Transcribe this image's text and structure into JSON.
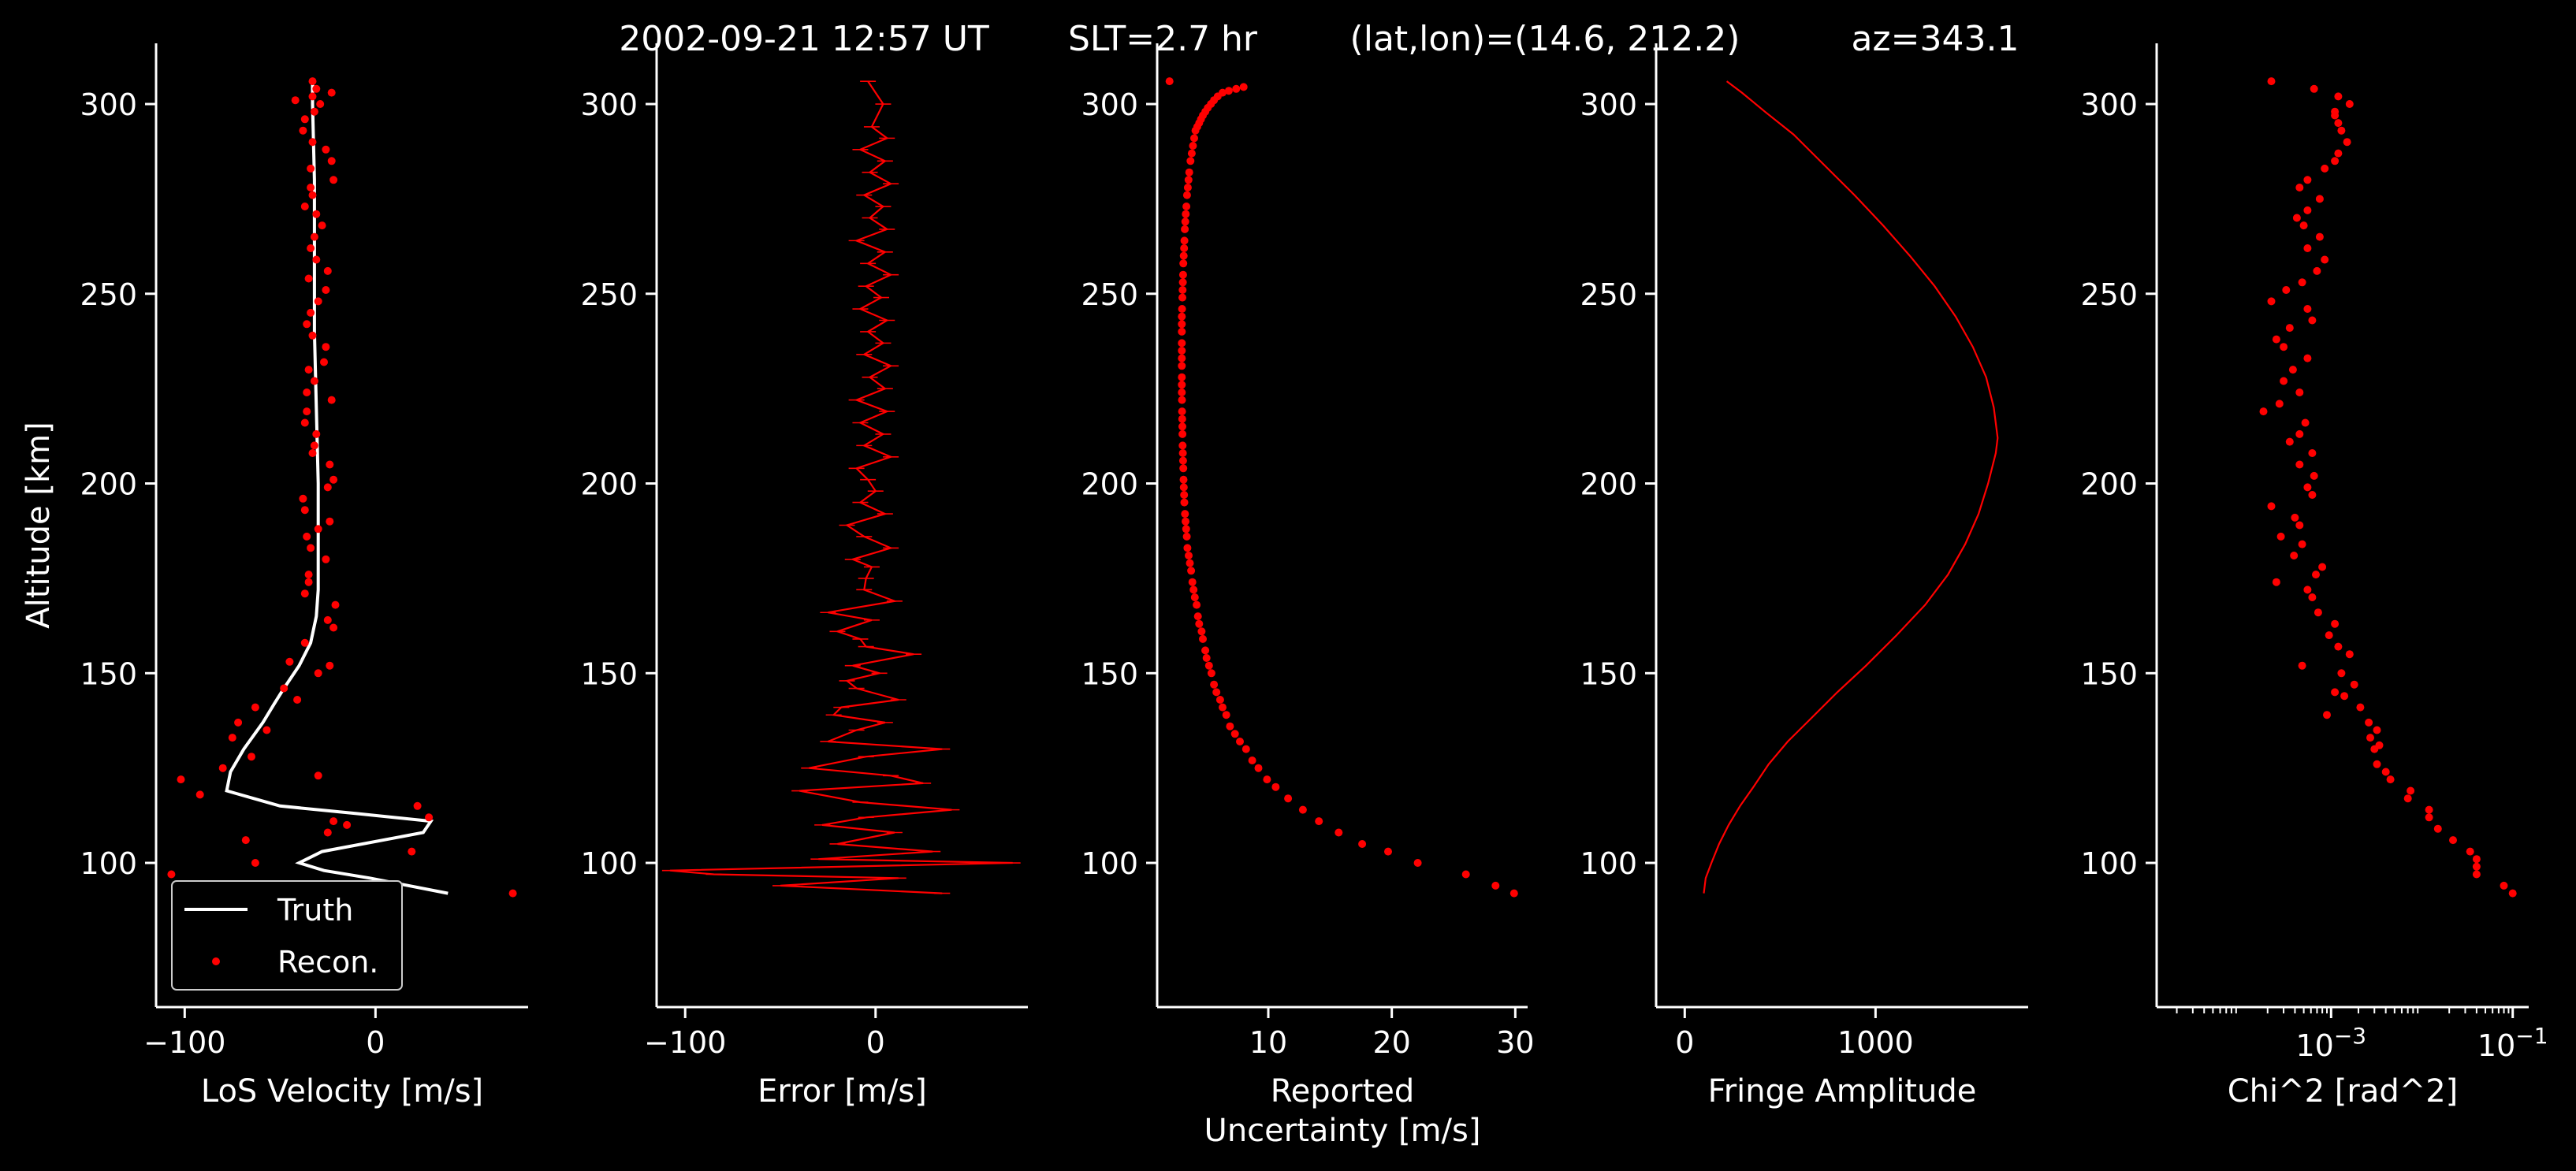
{
  "figure": {
    "title_parts": [
      "2002-09-21 12:57 UT",
      "SLT=2.7 hr",
      "(lat,lon)=(14.6, 212.2)",
      "az=343.1"
    ]
  },
  "colors": {
    "background": "#000000",
    "axes": "#ffffff",
    "truth": "#ffffff",
    "recon": "#ff0000"
  },
  "chart_data": [
    {
      "type": "scatter",
      "xlabel": "LoS Velocity [m/s]",
      "ylabel": "Altitude [km]",
      "xlim": [
        -115,
        80
      ],
      "ylim": [
        62,
        316
      ],
      "xticks": [
        -100,
        0
      ],
      "xtick_labels": [
        "−100",
        "0"
      ],
      "yticks": [
        100,
        150,
        200,
        250,
        300
      ],
      "legend": {
        "placement": "lower-left",
        "entries": [
          "Truth",
          "Recon."
        ]
      },
      "series": [
        {
          "name": "Truth",
          "style": "line",
          "color": "#ffffff",
          "x": [
            38,
            -3,
            -27,
            -40,
            -28,
            25,
            29,
            -10,
            -50,
            -78,
            -76,
            -69,
            -59,
            -53,
            -48,
            -40,
            -34,
            -31,
            -30,
            -30,
            -30,
            -31,
            -32,
            -32,
            -32,
            -33,
            -33
          ],
          "y": [
            92,
            96,
            98,
            100,
            103,
            108,
            111,
            113,
            115,
            119,
            124,
            130,
            137,
            142,
            146,
            152,
            158,
            165,
            172,
            180,
            200,
            220,
            240,
            260,
            280,
            300,
            306
          ]
        },
        {
          "name": "Recon.",
          "style": "points",
          "color": "#ff0000",
          "x": [
            72,
            -107,
            -63,
            19,
            -68,
            -25,
            -15,
            -22,
            28,
            22,
            -92,
            -102,
            -30,
            -80,
            -65,
            -75,
            -57,
            -72,
            -63,
            -41,
            -48,
            -30,
            -24,
            -45,
            -37,
            -22,
            -25,
            -21,
            -37,
            -35,
            -35,
            -26,
            -34,
            -36,
            -30,
            -24,
            -37,
            -38,
            -25,
            -22,
            -24,
            -33,
            -32,
            -31,
            -37,
            -36,
            -23,
            -36,
            -32,
            -35,
            -27,
            -26,
            -33,
            -36,
            -34,
            -30,
            -26,
            -35,
            -25,
            -31,
            -34,
            -32,
            -28,
            -31,
            -37,
            -33,
            -34,
            -22,
            -34,
            -23,
            -26,
            -33,
            -38,
            -37,
            -32,
            -29,
            -42,
            -33,
            -23,
            -31,
            -33
          ],
          "y": [
            92,
            97,
            100,
            103,
            106,
            108,
            110,
            111,
            112,
            115,
            118,
            122,
            123,
            125,
            128,
            133,
            135,
            137,
            141,
            143,
            146,
            150,
            152,
            153,
            158,
            162,
            164,
            168,
            171,
            174,
            176,
            180,
            183,
            186,
            188,
            190,
            193,
            196,
            199,
            201,
            205,
            208,
            210,
            213,
            216,
            219,
            222,
            224,
            227,
            230,
            232,
            236,
            239,
            242,
            245,
            248,
            251,
            254,
            256,
            259,
            262,
            265,
            268,
            271,
            273,
            276,
            278,
            280,
            283,
            285,
            288,
            290,
            293,
            296,
            298,
            300,
            301,
            302,
            303,
            304,
            306
          ]
        }
      ]
    },
    {
      "type": "line",
      "xlabel": "Error [m/s]",
      "xlim": [
        -115,
        80
      ],
      "ylim": [
        62,
        316
      ],
      "xticks": [
        -100,
        0
      ],
      "xtick_labels": [
        "−100",
        "0"
      ],
      "yticks": [
        100,
        150,
        200,
        250,
        300
      ],
      "series": [
        {
          "name": "",
          "style": "errorline",
          "color": "#ff0000",
          "x": [
            35,
            -50,
            12,
            -85,
            -108,
            72,
            -30,
            30,
            -20,
            10,
            -28,
            -5,
            40,
            -8,
            -40,
            25,
            8,
            -35,
            -5,
            35,
            -25,
            -10,
            5,
            -22,
            -18,
            12,
            -10,
            -15,
            2,
            -12,
            20,
            -5,
            -8,
            -20,
            -2,
            -25,
            10,
            -6,
            -5,
            -2,
            -12,
            8,
            -6,
            -15,
            5,
            -8,
            0,
            -4,
            -10,
            8,
            -6,
            4,
            -8,
            6,
            -10,
            5,
            -3,
            8,
            -6,
            4,
            -4,
            6,
            -8,
            3,
            -5,
            8,
            -4,
            5,
            -10,
            6,
            -3,
            4,
            -6,
            8,
            -3,
            5,
            -8,
            6,
            -2,
            4,
            -4
          ],
          "y": [
            92,
            94,
            96,
            97,
            98,
            100,
            101,
            103,
            105,
            108,
            110,
            112,
            114,
            116,
            119,
            121,
            123,
            125,
            128,
            130,
            132,
            135,
            137,
            139,
            141,
            143,
            146,
            148,
            150,
            152,
            155,
            157,
            159,
            161,
            164,
            166,
            169,
            172,
            175,
            178,
            180,
            183,
            186,
            189,
            192,
            195,
            198,
            201,
            204,
            207,
            210,
            213,
            216,
            219,
            222,
            225,
            228,
            231,
            234,
            237,
            240,
            243,
            246,
            249,
            252,
            255,
            258,
            261,
            264,
            267,
            270,
            273,
            276,
            279,
            282,
            285,
            288,
            291,
            294,
            300,
            306
          ]
        }
      ]
    },
    {
      "type": "scatter",
      "xlabel": "Reported",
      "xlabel2": "Uncertainty [m/s]",
      "xlim": [
        1,
        31
      ],
      "ylim": [
        62,
        316
      ],
      "xticks": [
        10,
        20,
        30
      ],
      "xtick_labels": [
        "10",
        "20",
        "30"
      ],
      "yticks": [
        100,
        150,
        200,
        250,
        300
      ],
      "series": [
        {
          "name": "",
          "style": "points",
          "color": "#ff0000",
          "x": [
            29.9,
            28.4,
            26,
            22.1,
            19.7,
            17.6,
            15.7,
            14.1,
            12.8,
            11.6,
            10.6,
            9.9,
            9.2,
            8.7,
            8.2,
            7.7,
            7.3,
            6.9,
            6.6,
            6.3,
            6.1,
            5.8,
            5.6,
            5.4,
            5.2,
            5,
            4.9,
            4.7,
            4.6,
            4.4,
            4.3,
            4.2,
            4.05,
            3.95,
            3.85,
            3.75,
            3.65,
            3.55,
            3.45,
            3.4,
            3.35,
            3.3,
            3.25,
            3.2,
            3.18,
            3.16,
            3.14,
            3.12,
            3.1,
            3.08,
            3.06,
            3.05,
            3.04,
            3.03,
            3.02,
            3.01,
            3,
            3,
            3,
            3,
            3,
            3,
            3,
            3,
            3,
            3,
            3.02,
            3.04,
            3.06,
            3.08,
            3.1,
            3.12,
            3.15,
            3.18,
            3.21,
            3.24,
            3.28,
            3.32,
            3.37,
            3.42,
            3.48,
            3.54,
            3.6,
            3.7,
            3.8,
            3.9,
            4,
            4.1,
            4.25,
            4.4,
            4.55,
            4.7,
            4.9,
            5.1,
            5.35,
            5.6,
            5.9,
            6.3,
            6.8,
            7.4,
            8,
            2
          ],
          "y": [
            92,
            94,
            97,
            100,
            103,
            105,
            108,
            111,
            114,
            117,
            120,
            122,
            125,
            127,
            130,
            132,
            134,
            136,
            139,
            141,
            143,
            145,
            147,
            150,
            152,
            154,
            156,
            159,
            161,
            163,
            165,
            168,
            170,
            172,
            174,
            177,
            179,
            181,
            183,
            186,
            188,
            190,
            192,
            195,
            197,
            199,
            201,
            204,
            206,
            208,
            210,
            213,
            215,
            217,
            219,
            222,
            224,
            226,
            228,
            231,
            233,
            235,
            237,
            240,
            242,
            244,
            246,
            249,
            251,
            253,
            255,
            258,
            260,
            262,
            264,
            267,
            269,
            271,
            273,
            276,
            278,
            280,
            282,
            285,
            287,
            289,
            291,
            293,
            294,
            295,
            296,
            297,
            298,
            299,
            300,
            301,
            302,
            303,
            303.5,
            304,
            304.5,
            306
          ]
        }
      ]
    },
    {
      "type": "line",
      "xlabel": "Fringe Amplitude",
      "xlim": [
        -150,
        1800
      ],
      "ylim": [
        62,
        316
      ],
      "xticks": [
        0,
        1000
      ],
      "xtick_labels": [
        "0",
        "1000"
      ],
      "yticks": [
        100,
        150,
        200,
        250,
        300
      ],
      "series": [
        {
          "name": "",
          "style": "line",
          "color": "#ff0000",
          "x": [
            100,
            110,
            140,
            180,
            230,
            290,
            360,
            440,
            540,
            660,
            800,
            950,
            1110,
            1260,
            1380,
            1470,
            1540,
            1590,
            1630,
            1640,
            1620,
            1580,
            1510,
            1420,
            1310,
            1180,
            1040,
            890,
            730,
            570,
            420,
            300,
            220
          ],
          "y": [
            92,
            96,
            100,
            105,
            110,
            115,
            120,
            126,
            132,
            138,
            145,
            152,
            160,
            168,
            176,
            184,
            192,
            200,
            208,
            212,
            220,
            228,
            236,
            244,
            252,
            260,
            268,
            276,
            284,
            292,
            298,
            303,
            306
          ]
        }
      ]
    },
    {
      "type": "scatter",
      "xlabel": "Chi^2 [rad^2]",
      "xscale": "log",
      "xlim": [
        1.2e-05,
        0.15
      ],
      "ylim": [
        62,
        316
      ],
      "xticks": [
        0.001,
        0.1
      ],
      "xtick_labels": [
        "10−3",
        "10−1"
      ],
      "yticks": [
        100,
        150,
        200,
        250,
        300
      ],
      "series": [
        {
          "name": "",
          "style": "points",
          "color": "#ff0000",
          "x": [
            0.1,
            0.08,
            0.04,
            0.04,
            0.04,
            0.034,
            0.022,
            0.015,
            0.012,
            0.012,
            0.007,
            0.0075,
            0.0045,
            0.004,
            0.0032,
            0.003,
            0.0027,
            0.0032,
            0.0026,
            0.0009,
            0.0034,
            0.0021,
            0.0014,
            0.0011,
            0.0018,
            0.0013,
            0.00048,
            0.0016,
            0.0012,
            0.00095,
            0.0011,
            0.00072,
            0.00062,
            0.00055,
            0.00025,
            0.00068,
            0.0008,
            0.00039,
            0.00048,
            0.00028,
            0.00045,
            0.0004,
            0.00022,
            0.00062,
            0.00055,
            0.00065,
            0.00045,
            0.00062,
            0.00035,
            0.00045,
            0.00052,
            0.00018,
            0.00027,
            0.00045,
            0.0003,
            0.00038,
            0.00055,
            0.0003,
            0.00025,
            0.00035,
            0.00062,
            0.00055,
            0.00022,
            0.00032,
            0.00048,
            0.0007,
            0.00085,
            0.00055,
            0.00075,
            0.0005,
            0.00042,
            0.00055,
            0.00075,
            0.00045,
            0.00055,
            0.00085,
            0.0011,
            0.0012,
            0.0015,
            0.0013,
            0.0012,
            0.0011,
            0.0011,
            0.0016,
            0.0012,
            0.00065,
            0.00022
          ],
          "y": [
            92,
            94,
            97,
            99,
            101,
            103,
            106,
            109,
            112,
            114,
            117,
            119,
            122,
            124,
            126,
            130,
            133,
            135,
            137,
            139,
            131,
            141,
            144,
            145,
            147,
            150,
            152,
            155,
            157,
            160,
            163,
            166,
            170,
            172,
            174,
            176,
            178,
            181,
            184,
            186,
            189,
            191,
            194,
            197,
            199,
            202,
            205,
            208,
            211,
            213,
            216,
            219,
            221,
            224,
            227,
            230,
            233,
            236,
            238,
            241,
            243,
            246,
            248,
            251,
            253,
            256,
            259,
            262,
            265,
            268,
            270,
            272,
            275,
            278,
            280,
            283,
            285,
            287,
            290,
            293,
            295,
            297,
            298,
            300,
            302,
            304,
            306
          ]
        }
      ]
    }
  ]
}
